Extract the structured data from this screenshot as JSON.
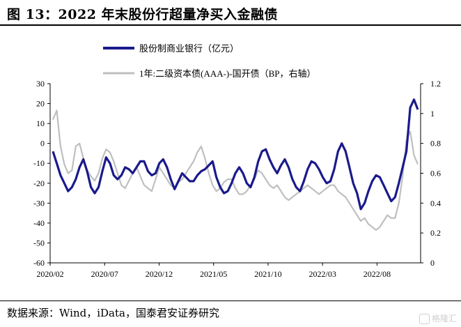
{
  "figure_title": "图 13：2022 年末股份行超量净买入金融债",
  "source": "数据来源：Wind，iData，国泰君安证券研究",
  "watermark": "格隆汇",
  "colors": {
    "series1": "#1a1a8c",
    "series2": "#bfbfbf",
    "axis": "#000000"
  },
  "chart_data": {
    "type": "line",
    "legend_position": "top-center",
    "grid": false,
    "x_ticks": [
      "2020/02",
      "2020/07",
      "2020/12",
      "2021/05",
      "2021/10",
      "2022/03",
      "2022/08"
    ],
    "y_left": {
      "lim": [
        -60,
        30
      ],
      "ticks": [
        "30",
        "20",
        "10",
        "0",
        "-10",
        "-20",
        "-30",
        "-40",
        "-50",
        "-60"
      ]
    },
    "y_right": {
      "lim": [
        0,
        1.2
      ],
      "ticks": [
        "1.2",
        "1",
        "0.8",
        "0.6",
        "0.4",
        "0.2",
        "0"
      ]
    },
    "series": [
      {
        "name": "股份制商业银行（亿元）",
        "axis": "left",
        "values": [
          -4,
          -10,
          -16,
          -20,
          -24,
          -22,
          -18,
          -12,
          -8,
          -14,
          -22,
          -25,
          -22,
          -14,
          -7,
          -10,
          -16,
          -18,
          -16,
          -12,
          -13,
          -15,
          -12,
          -9,
          -9,
          -14,
          -16,
          -15,
          -10,
          -8,
          -12,
          -18,
          -23,
          -19,
          -15,
          -17,
          -19,
          -19,
          -16,
          -14,
          -13,
          -11,
          -9,
          -17,
          -22,
          -25,
          -24,
          -20,
          -15,
          -12,
          -15,
          -20,
          -22,
          -17,
          -9,
          -4,
          -3,
          -8,
          -12,
          -15,
          -11,
          -8,
          -12,
          -18,
          -22,
          -24,
          -19,
          -13,
          -9,
          -10,
          -13,
          -17,
          -20,
          -19,
          -13,
          -4,
          0,
          -4,
          -12,
          -20,
          -25,
          -33,
          -30,
          -24,
          -19,
          -16,
          -17,
          -21,
          -25,
          -29,
          -27,
          -20,
          -12,
          -4,
          18,
          22,
          17
        ]
      },
      {
        "name": "1年:二级资本债(AAA-)-国开债（BP，右轴）",
        "axis": "right",
        "values": [
          0.96,
          1.02,
          0.78,
          0.66,
          0.6,
          0.62,
          0.78,
          0.8,
          0.7,
          0.62,
          0.58,
          0.55,
          0.6,
          0.7,
          0.76,
          0.74,
          0.68,
          0.6,
          0.52,
          0.5,
          0.55,
          0.6,
          0.64,
          0.58,
          0.52,
          0.5,
          0.48,
          0.56,
          0.64,
          0.6,
          0.56,
          0.52,
          0.5,
          0.54,
          0.56,
          0.6,
          0.64,
          0.68,
          0.74,
          0.78,
          0.7,
          0.6,
          0.52,
          0.48,
          0.5,
          0.54,
          0.56,
          0.56,
          0.5,
          0.46,
          0.46,
          0.48,
          0.52,
          0.56,
          0.62,
          0.6,
          0.56,
          0.52,
          0.5,
          0.52,
          0.48,
          0.44,
          0.42,
          0.44,
          0.46,
          0.48,
          0.5,
          0.52,
          0.5,
          0.48,
          0.46,
          0.48,
          0.5,
          0.52,
          0.52,
          0.48,
          0.46,
          0.44,
          0.4,
          0.36,
          0.32,
          0.28,
          0.3,
          0.26,
          0.24,
          0.22,
          0.24,
          0.28,
          0.32,
          0.3,
          0.3,
          0.4,
          0.58,
          0.82,
          0.88,
          0.72,
          0.66
        ]
      }
    ]
  }
}
